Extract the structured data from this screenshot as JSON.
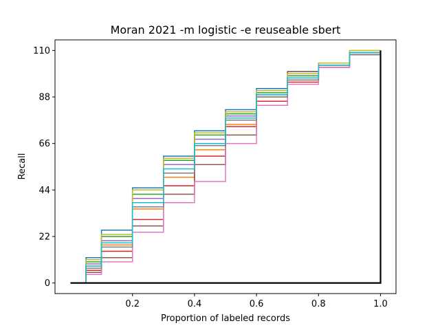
{
  "chart_data": {
    "type": "line",
    "title": "Moran 2021 -m logistic -e reuseable sbert",
    "xlabel": "Proportion of labeled records",
    "ylabel": "Recall",
    "xlim": [
      -0.05,
      1.05
    ],
    "ylim": [
      -5,
      115
    ],
    "xticks": [
      0.2,
      0.4,
      0.6,
      0.8,
      1.0
    ],
    "xtick_labels": [
      "0.2",
      "0.4",
      "0.6",
      "0.8",
      "1.0"
    ],
    "yticks": [
      0,
      22,
      44,
      66,
      88,
      110
    ],
    "ytick_labels": [
      "0",
      "22",
      "44",
      "66",
      "88",
      "110"
    ],
    "grid": false,
    "legend": "none",
    "colors": [
      "#1f77b4",
      "#ff7f0e",
      "#2ca02c",
      "#d62728",
      "#9467bd",
      "#8c564b",
      "#e377c2",
      "#7f7f7f",
      "#bcbd22",
      "#17becf"
    ],
    "series": [
      {
        "color": "#1f77b4",
        "x": [
          0,
          0.05,
          0.1,
          0.2,
          0.3,
          0.4,
          0.5,
          0.6,
          0.7,
          0.8,
          0.9,
          1.0
        ],
        "y": [
          0,
          12,
          25,
          45,
          60,
          72,
          82,
          92,
          100,
          104,
          109,
          110
        ]
      },
      {
        "color": "#ff7f0e",
        "x": [
          0,
          0.05,
          0.1,
          0.2,
          0.3,
          0.4,
          0.5,
          0.6,
          0.7,
          0.8,
          0.9,
          1.0
        ],
        "y": [
          0,
          8,
          18,
          35,
          50,
          63,
          75,
          88,
          96,
          103,
          108,
          110
        ]
      },
      {
        "color": "#2ca02c",
        "x": [
          0,
          0.05,
          0.1,
          0.2,
          0.3,
          0.4,
          0.5,
          0.6,
          0.7,
          0.8,
          0.9,
          1.0
        ],
        "y": [
          0,
          10,
          22,
          42,
          58,
          70,
          80,
          90,
          98,
          104,
          109,
          110
        ]
      },
      {
        "color": "#d62728",
        "x": [
          0,
          0.05,
          0.1,
          0.2,
          0.3,
          0.4,
          0.5,
          0.6,
          0.7,
          0.8,
          0.9,
          1.0
        ],
        "y": [
          0,
          6,
          15,
          30,
          46,
          60,
          74,
          86,
          95,
          102,
          108,
          110
        ]
      },
      {
        "color": "#9467bd",
        "x": [
          0,
          0.05,
          0.1,
          0.2,
          0.3,
          0.4,
          0.5,
          0.6,
          0.7,
          0.8,
          0.9,
          1.0
        ],
        "y": [
          0,
          9,
          20,
          40,
          56,
          68,
          79,
          89,
          97,
          103,
          108,
          110
        ]
      },
      {
        "color": "#8c564b",
        "x": [
          0,
          0.05,
          0.1,
          0.2,
          0.3,
          0.4,
          0.5,
          0.6,
          0.7,
          0.8,
          0.9,
          1.0
        ],
        "y": [
          0,
          5,
          12,
          27,
          42,
          56,
          70,
          84,
          100,
          104,
          109,
          110
        ]
      },
      {
        "color": "#e377c2",
        "x": [
          0,
          0.05,
          0.1,
          0.2,
          0.3,
          0.4,
          0.5,
          0.6,
          0.7,
          0.8,
          0.9,
          1.0
        ],
        "y": [
          0,
          4,
          10,
          24,
          38,
          48,
          66,
          84,
          94,
          102,
          108,
          110
        ]
      },
      {
        "color": "#7f7f7f",
        "x": [
          0,
          0.05,
          0.1,
          0.2,
          0.3,
          0.4,
          0.5,
          0.6,
          0.7,
          0.8,
          0.9,
          1.0
        ],
        "y": [
          0,
          7,
          17,
          36,
          52,
          65,
          77,
          88,
          96,
          103,
          108,
          110
        ]
      },
      {
        "color": "#bcbd22",
        "x": [
          0,
          0.05,
          0.1,
          0.2,
          0.3,
          0.4,
          0.5,
          0.6,
          0.7,
          0.8,
          0.9,
          1.0
        ],
        "y": [
          0,
          11,
          23,
          44,
          59,
          71,
          81,
          91,
          99,
          104,
          110,
          110
        ]
      },
      {
        "color": "#17becf",
        "x": [
          0,
          0.05,
          0.1,
          0.2,
          0.3,
          0.4,
          0.5,
          0.6,
          0.7,
          0.8,
          0.9,
          1.0
        ],
        "y": [
          0,
          8,
          19,
          38,
          54,
          66,
          78,
          89,
          97,
          103,
          109,
          110
        ]
      },
      {
        "color": "#000000",
        "x": [
          0,
          1.0
        ],
        "y": [
          0,
          110
        ]
      }
    ]
  }
}
